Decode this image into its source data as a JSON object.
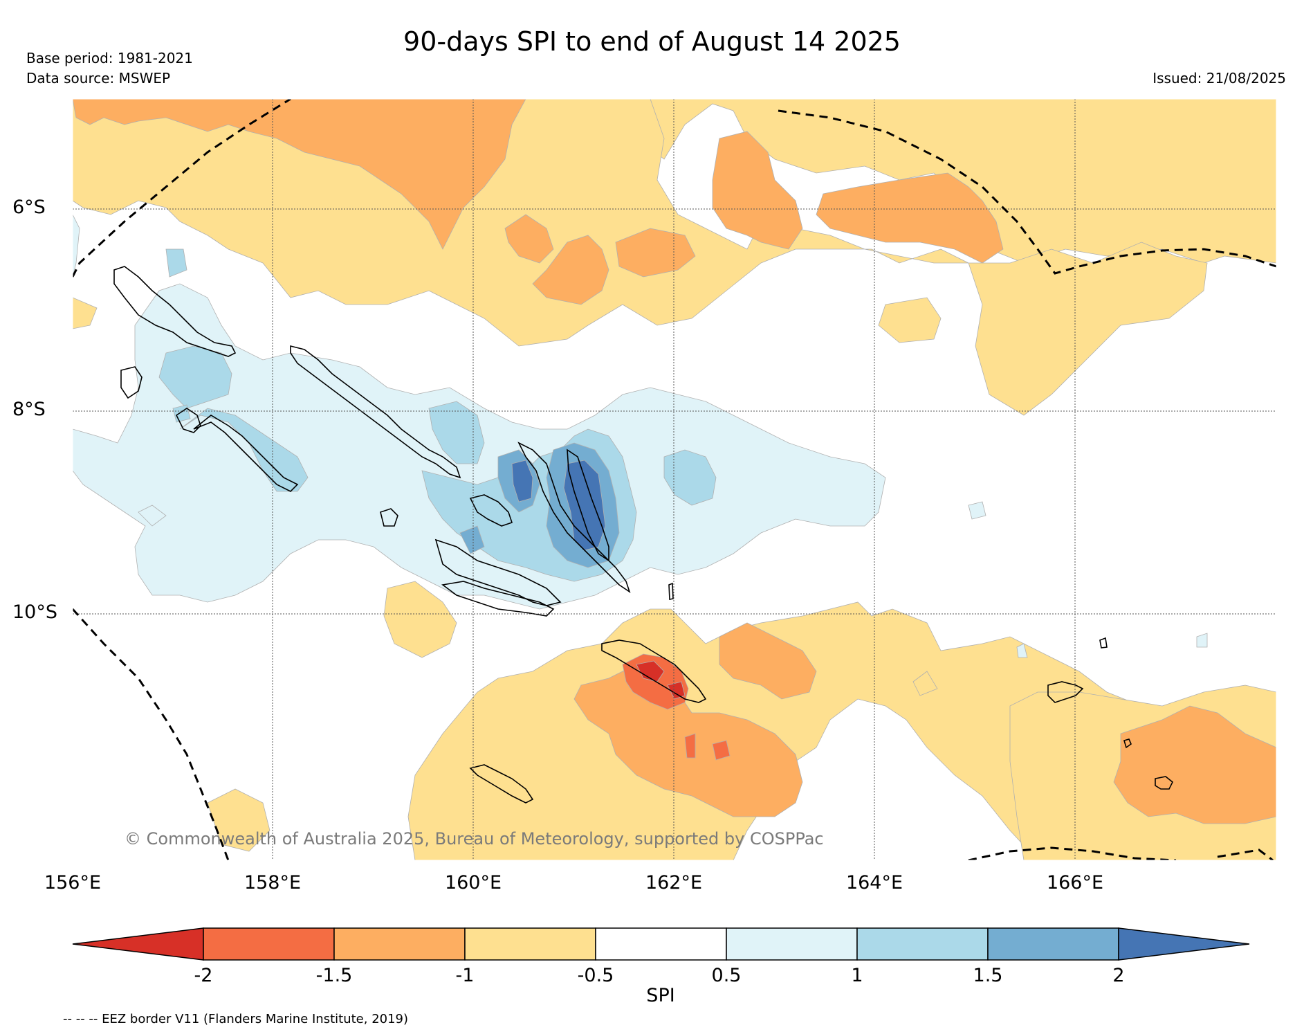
{
  "header": {
    "title": "90-days SPI to end of August 14 2025",
    "base_period": "Base period: 1981-2021",
    "data_source": "Data source: MSWEP",
    "issued": "Issued: 21/08/2025"
  },
  "map": {
    "lat_ticks": [
      "6°S",
      "8°S",
      "10°S"
    ],
    "lon_ticks": [
      "156°E",
      "158°E",
      "160°E",
      "162°E",
      "164°E",
      "166°E"
    ],
    "copyright": "© Commonwealth of Australia 2025, Bureau of Meteorology, supported by COSPPac"
  },
  "legend": {
    "label": "SPI",
    "ticks": [
      "-2",
      "-1.5",
      "-1",
      "-0.5",
      "0.5",
      "1",
      "1.5",
      "2"
    ],
    "colors": [
      "#d73027",
      "#f46d43",
      "#fdae61",
      "#fee090",
      "#ffffff",
      "#e0f3f8",
      "#abd9e9",
      "#74add1",
      "#4575b4"
    ],
    "eez_note": "-- -- -- EEZ border V11 (Flanders Marine Institute, 2019)"
  }
}
